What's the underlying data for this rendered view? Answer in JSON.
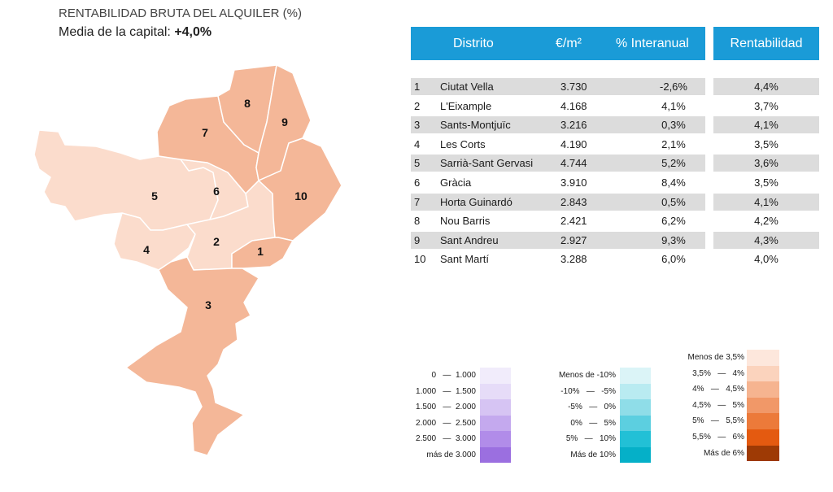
{
  "header": {
    "title": "RENTABILIDAD BRUTA DEL ALQUILER (%)",
    "subtitle_prefix": "Media de la capital: ",
    "subtitle_value": "+4,0%"
  },
  "chart_data": {
    "type": "table",
    "columns": [
      "Distrito",
      "€/m²",
      "% Interanual",
      "Rentabilidad"
    ],
    "rows": [
      {
        "num": "1",
        "distrito": "Ciutat Vella",
        "eur_m2": "3.730",
        "interanual": "-2,6%",
        "rentabilidad": "4,4%"
      },
      {
        "num": "2",
        "distrito": "L'Eixample",
        "eur_m2": "4.168",
        "interanual": "4,1%",
        "rentabilidad": "3,7%"
      },
      {
        "num": "3",
        "distrito": "Sants-Montjuïc",
        "eur_m2": "3.216",
        "interanual": "0,3%",
        "rentabilidad": "4,1%"
      },
      {
        "num": "4",
        "distrito": "Les Corts",
        "eur_m2": "4.190",
        "interanual": "2,1%",
        "rentabilidad": "3,5%"
      },
      {
        "num": "5",
        "distrito": "Sarrià-Sant Gervasi",
        "eur_m2": "4.744",
        "interanual": "5,2%",
        "rentabilidad": "3,6%"
      },
      {
        "num": "6",
        "distrito": "Gràcia",
        "eur_m2": "3.910",
        "interanual": "8,4%",
        "rentabilidad": "3,5%"
      },
      {
        "num": "7",
        "distrito": "Horta Guinardó",
        "eur_m2": "2.843",
        "interanual": "0,5%",
        "rentabilidad": "4,1%"
      },
      {
        "num": "8",
        "distrito": "Nou Barris",
        "eur_m2": "2.421",
        "interanual": "6,2%",
        "rentabilidad": "4,2%"
      },
      {
        "num": "9",
        "distrito": "Sant Andreu",
        "eur_m2": "2.927",
        "interanual": "9,3%",
        "rentabilidad": "4,3%"
      },
      {
        "num": "10",
        "distrito": "Sant Martí",
        "eur_m2": "3.288",
        "interanual": "6,0%",
        "rentabilidad": "4,0%"
      }
    ],
    "map_labels": [
      "1",
      "2",
      "3",
      "4",
      "5",
      "6",
      "7",
      "8",
      "9",
      "10"
    ],
    "map_colors": {
      "light": "#fbdccc",
      "medium": "#f4b798"
    }
  },
  "legends": {
    "price": {
      "items": [
        "0   —  1.000",
        "1.000   —  1.500",
        "1.500   —  2.000",
        "2.000   —  2.500",
        "2.500   —  3.000",
        "más de 3.000"
      ],
      "colors": [
        "#f1ecfb",
        "#e6dcf8",
        "#d6c4f3",
        "#c4a9ee",
        "#b18ce9",
        "#9b6fe0"
      ]
    },
    "annual": {
      "items": [
        "Menos de -10%",
        "-10%   —   -5%",
        "-5%   —   0%",
        "0%   —   5%",
        "5%   —   10%",
        "Más de 10%"
      ],
      "colors": [
        "#dbf4f7",
        "#b9ebf1",
        "#8fdde8",
        "#5ccfe0",
        "#22c0d6",
        "#05b0c8"
      ]
    },
    "rent": {
      "items": [
        "Menos de 3,5%",
        "3,5%   —   4%",
        "4%   —   4,5%",
        "4,5%   —   5%",
        "5%   —   5,5%",
        "5,5%   —   6%",
        "Más de 6%"
      ],
      "colors": [
        "#fde7dc",
        "#fbd3bd",
        "#f6b490",
        "#f19868",
        "#ec7a3a",
        "#e45a10",
        "#9e3a05"
      ]
    }
  }
}
